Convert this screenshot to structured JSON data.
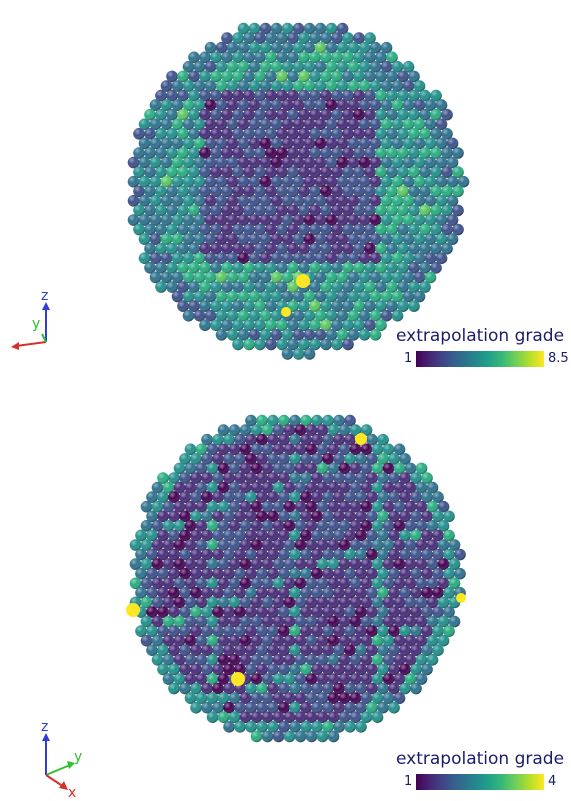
{
  "panels": [
    {
      "id": "top",
      "view": "front",
      "axes": {
        "labels": [
          "z",
          "y",
          "x"
        ],
        "colors": [
          "#2f3fd6",
          "#2fc02f",
          "#d62f2f"
        ]
      },
      "legend": {
        "title": "extrapolation grade",
        "min_label": "1",
        "max_label": "8.5",
        "min": 1,
        "max": 8.5,
        "colormap": "viridis"
      }
    },
    {
      "id": "bottom",
      "view": "oblique",
      "axes": {
        "labels": [
          "z",
          "y",
          "x"
        ],
        "colors": [
          "#2f3fd6",
          "#2fc02f",
          "#d62f2f"
        ]
      },
      "legend": {
        "title": "extrapolation grade",
        "min_label": "1",
        "max_label": "4",
        "min": 1,
        "max": 4,
        "colormap": "viridis"
      }
    }
  ]
}
